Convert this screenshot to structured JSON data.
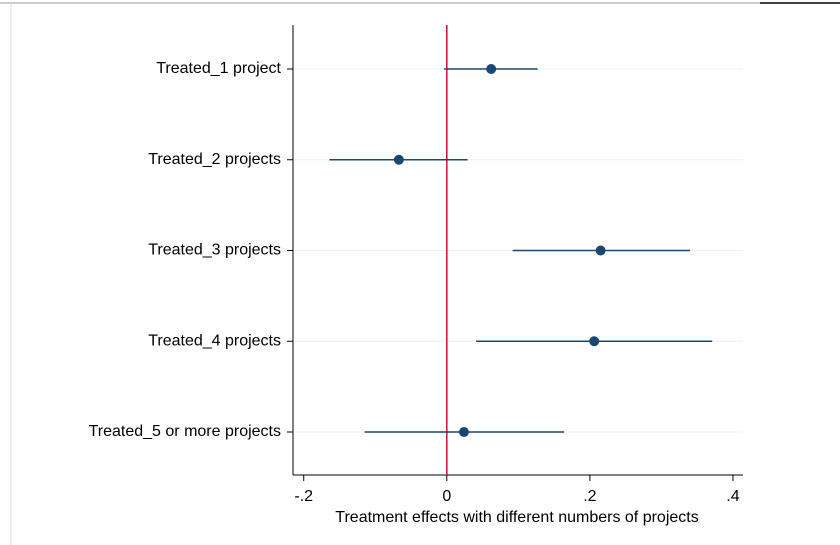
{
  "chart_data": {
    "type": "coefplot",
    "xlabel": "Treatment effects with different numbers of projects",
    "categories": [
      "Treated_1 project",
      "Treated_2 projects",
      "Treated_3 projects",
      "Treated_4 projects",
      "Treated_5 or more projects"
    ],
    "series": [
      {
        "color": "#1a476f",
        "values": [
          0.062,
          -0.067,
          0.215,
          0.206,
          0.024
        ],
        "lower": [
          -0.004,
          -0.164,
          0.092,
          0.041,
          -0.115
        ],
        "upper": [
          0.127,
          0.029,
          0.34,
          0.371,
          0.164
        ]
      }
    ],
    "xlim": [
      -0.215,
      0.414
    ],
    "xticks": [
      {
        "value": -0.2,
        "label": "-.2"
      },
      0,
      {
        "value": 0.2,
        "label": ".2"
      },
      {
        "value": 0.4,
        "label": ".4"
      }
    ],
    "reference_line": {
      "value": 0,
      "color": "#c8102e"
    },
    "grid": true
  }
}
